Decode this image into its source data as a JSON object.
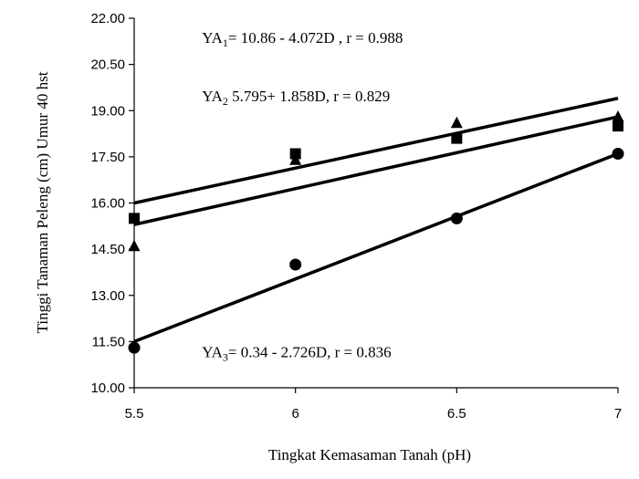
{
  "chart_data": {
    "type": "scatter",
    "xlabel": "Tingkat Kemasaman Tanah (pH)",
    "ylabel": "Tinggi Tanaman Peleng (cm) Umur 40 hst",
    "xlim": [
      5.5,
      7
    ],
    "ylim": [
      10.0,
      22.0
    ],
    "x_ticks": [
      "5.5",
      "6",
      "6.5",
      "7"
    ],
    "y_ticks": [
      "10.00",
      "11.50",
      "13.00",
      "14.50",
      "16.00",
      "17.50",
      "19.00",
      "20.50",
      "22.00"
    ],
    "grid": false,
    "legend": "none",
    "series": [
      {
        "marker": "square",
        "x": [
          5.5,
          6.0,
          6.5,
          7.0
        ],
        "y": [
          15.5,
          17.6,
          18.1,
          18.5
        ],
        "fit": [
          15.3,
          18.8
        ]
      },
      {
        "marker": "triangle",
        "x": [
          5.5,
          6.0,
          6.5,
          7.0
        ],
        "y": [
          14.6,
          17.4,
          18.6,
          18.8
        ],
        "fit": [
          16.0,
          19.4
        ]
      },
      {
        "marker": "circle",
        "x": [
          5.5,
          6.0,
          6.5,
          7.0
        ],
        "y": [
          11.3,
          14.0,
          15.5,
          17.6
        ],
        "fit": [
          11.5,
          17.6
        ]
      }
    ],
    "annotations": [
      {
        "base": "YA",
        "sub": "1",
        "text": "= 10.86 - 4.072D , r = 0.988",
        "x": 5.71,
        "y": 21.2
      },
      {
        "base": "YA",
        "sub": "2",
        "text": " 5.795+ 1.858D, r = 0.829",
        "x": 5.71,
        "y": 19.3
      },
      {
        "base": "YA",
        "sub": "3",
        "text": "= 0.34 - 2.726D, r = 0.836",
        "x": 5.71,
        "y": 11.0
      }
    ]
  }
}
